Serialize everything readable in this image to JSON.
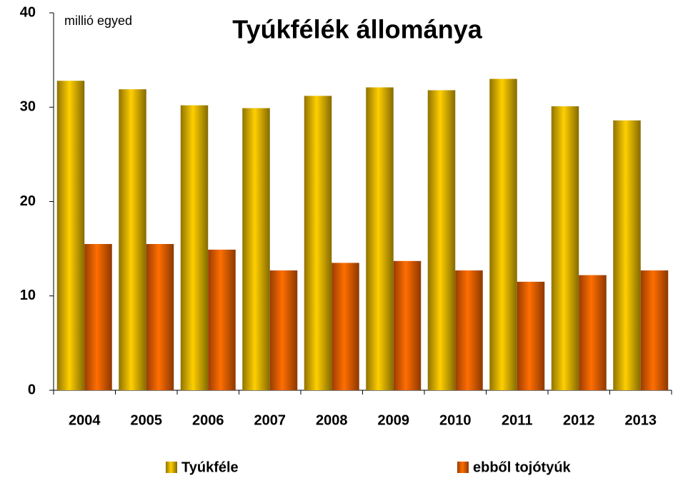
{
  "chart_data": {
    "type": "bar",
    "title": "Tyúkfélék állománya",
    "unit_label": "millió egyed",
    "categories": [
      "2004",
      "2005",
      "2006",
      "2007",
      "2008",
      "2009",
      "2010",
      "2011",
      "2012",
      "2013"
    ],
    "series": [
      {
        "name": "Tyúkféle",
        "color": "#f0c000",
        "values": [
          32.8,
          31.9,
          30.2,
          29.9,
          31.2,
          32.1,
          31.8,
          33.0,
          30.1,
          28.6
        ]
      },
      {
        "name": "ebből tojótyúk",
        "color": "#ff6600",
        "values": [
          15.5,
          15.5,
          14.9,
          12.7,
          13.5,
          13.7,
          12.7,
          11.5,
          12.2,
          12.7
        ]
      }
    ],
    "ylim": [
      0,
      40
    ],
    "yticks": [
      0,
      10,
      20,
      30,
      40
    ],
    "grid": false,
    "legend": "bottom"
  }
}
